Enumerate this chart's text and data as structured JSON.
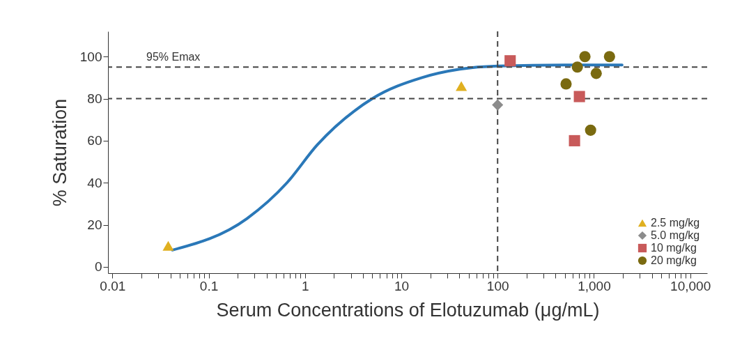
{
  "chart_data": {
    "type": "scatter",
    "xlabel": "Serum Concentrations of Elotuzumab (μg/mL)",
    "ylabel": "% Saturation",
    "log": "x",
    "grid": false,
    "legend": "bottom right",
    "xlim": [
      0.009,
      15000
    ],
    "ylim": [
      -3,
      112
    ],
    "yticks": [
      0,
      20,
      40,
      60,
      80,
      100
    ],
    "xticks": [
      0.01,
      {
        "value": 0.02,
        "label": null
      },
      {
        "value": 0.03,
        "label": null
      },
      {
        "value": 0.04,
        "label": null
      },
      {
        "value": 0.05,
        "label": null
      },
      {
        "value": 0.06,
        "label": null
      },
      {
        "value": 0.07,
        "label": null
      },
      {
        "value": 0.08,
        "label": null
      },
      {
        "value": 0.09,
        "label": null
      },
      0.1,
      {
        "value": 0.2,
        "label": null
      },
      {
        "value": 0.3,
        "label": null
      },
      {
        "value": 0.4,
        "label": null
      },
      {
        "value": 0.5,
        "label": null
      },
      {
        "value": 0.6,
        "label": null
      },
      {
        "value": 0.7,
        "label": null
      },
      {
        "value": 0.8,
        "label": null
      },
      {
        "value": 0.9,
        "label": null
      },
      1,
      {
        "value": 2,
        "label": null
      },
      {
        "value": 3,
        "label": null
      },
      {
        "value": 4,
        "label": null
      },
      {
        "value": 5,
        "label": null
      },
      {
        "value": 6,
        "label": null
      },
      {
        "value": 7,
        "label": null
      },
      {
        "value": 8,
        "label": null
      },
      {
        "value": 9,
        "label": null
      },
      10,
      {
        "value": 20,
        "label": null
      },
      {
        "value": 30,
        "label": null
      },
      {
        "value": 40,
        "label": null
      },
      {
        "value": 50,
        "label": null
      },
      {
        "value": 60,
        "label": null
      },
      {
        "value": 70,
        "label": null
      },
      {
        "value": 80,
        "label": null
      },
      {
        "value": 90,
        "label": null
      },
      100,
      {
        "value": 200,
        "label": null
      },
      {
        "value": 300,
        "label": null
      },
      {
        "value": 400,
        "label": null
      },
      {
        "value": 500,
        "label": null
      },
      {
        "value": 600,
        "label": null
      },
      {
        "value": 700,
        "label": null
      },
      {
        "value": 800,
        "label": null
      },
      {
        "value": 900,
        "label": null
      },
      {
        "value": 1000,
        "label": "1,000"
      },
      {
        "value": 2000,
        "label": null
      },
      {
        "value": 3000,
        "label": null
      },
      {
        "value": 4000,
        "label": null
      },
      {
        "value": 5000,
        "label": null
      },
      {
        "value": 6000,
        "label": null
      },
      {
        "value": 7000,
        "label": null
      },
      {
        "value": 8000,
        "label": null
      },
      {
        "value": 9000,
        "label": null
      },
      {
        "value": 10000,
        "label": "10,000"
      }
    ],
    "ref_lines": [
      {
        "axis": "y",
        "value": 95,
        "label": "95% Emax",
        "color": "#444444",
        "line_style": "dashed"
      },
      {
        "axis": "y",
        "value": 80,
        "color": "#444444",
        "line_style": "dashed"
      },
      {
        "axis": "x",
        "value": 100,
        "color": "#444444",
        "line_style": "dashed"
      }
    ],
    "series": [
      {
        "type": "line",
        "color": "#2a78b8",
        "line_style": "solid",
        "marker": "none",
        "x": [
          0.042,
          0.25,
          0.65,
          1.34,
          5.0,
          16.4,
          40.5,
          100,
          500,
          1960
        ],
        "values": [
          8,
          23,
          40,
          58,
          80,
          90,
          94,
          95.5,
          96,
          96
        ]
      },
      {
        "name": "2.5 mg/kg",
        "color": "#e0b020",
        "marker": "triangle",
        "x": [
          0.038,
          42
        ],
        "values": [
          10,
          86
        ]
      },
      {
        "name": "5.0 mg/kg",
        "color": "#8c8c8c",
        "marker": "diamond",
        "x": [
          100
        ],
        "values": [
          77
        ]
      },
      {
        "name": "10 mg/kg",
        "color": "#c85a5a",
        "marker": "square",
        "x": [
          135,
          707,
          629
        ],
        "values": [
          98,
          81,
          60
        ]
      },
      {
        "name": "20 mg/kg",
        "color": "#7a6a10",
        "marker": "circle",
        "x": [
          514,
          673,
          807,
          1057,
          1452,
          924
        ],
        "values": [
          87,
          95,
          100,
          92,
          100,
          65
        ]
      }
    ]
  }
}
